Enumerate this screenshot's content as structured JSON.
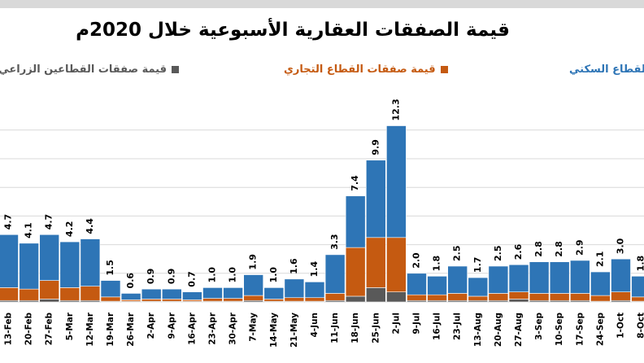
{
  "chart_data": {
    "type": "bar",
    "stacked": true,
    "title": "قيمة الصفقات العقارية الأسبوعية خلال 2020م",
    "legend_position": "top",
    "grid": true,
    "categories": [
      "13-Feb",
      "20-Feb",
      "27-Feb",
      "5-Mar",
      "12-Mar",
      "19-Mar",
      "26-Mar",
      "2-Apr",
      "9-Apr",
      "16-Apr",
      "23-Apr",
      "30-Apr",
      "7-May",
      "14-May",
      "21-May",
      "4-Jun",
      "11-Jun",
      "18-Jun",
      "25-Jun",
      "2-Jul",
      "9-Jul",
      "16-Jul",
      "23-Jul",
      "13-Aug",
      "20-Aug",
      "27-Aug",
      "3-Sep",
      "10-Sep",
      "17-Sep",
      "24-Sep",
      "1-Oct",
      "8-Oct"
    ],
    "totals": [
      4.7,
      4.1,
      4.7,
      4.2,
      4.4,
      1.5,
      0.6,
      0.9,
      0.9,
      0.7,
      1.0,
      1.0,
      1.9,
      1.0,
      1.6,
      1.4,
      3.3,
      7.4,
      9.9,
      12.3,
      2.0,
      1.8,
      2.5,
      1.7,
      2.5,
      2.6,
      2.8,
      2.8,
      2.9,
      2.1,
      3.0,
      1.8
    ],
    "series": [
      {
        "name": "قيمة صفقات القطاعين الزراعي وا",
        "color": "#595959",
        "values": [
          0.1,
          0.1,
          0.2,
          0.1,
          0.1,
          0.05,
          0.05,
          0.05,
          0.05,
          0.05,
          0.05,
          0.05,
          0.1,
          0.05,
          0.05,
          0.05,
          0.1,
          0.4,
          1.0,
          0.7,
          0.1,
          0.1,
          0.1,
          0.1,
          0.1,
          0.2,
          0.1,
          0.1,
          0.1,
          0.05,
          0.1,
          0.05
        ]
      },
      {
        "name": "قيمة صفقات القطاع التجاري",
        "color": "#c55a11",
        "values": [
          0.9,
          0.8,
          1.3,
          0.9,
          1.0,
          0.3,
          0.1,
          0.15,
          0.15,
          0.1,
          0.2,
          0.2,
          0.35,
          0.15,
          0.25,
          0.25,
          0.5,
          3.4,
          3.5,
          3.8,
          0.4,
          0.4,
          0.5,
          0.3,
          0.5,
          0.5,
          0.5,
          0.5,
          0.5,
          0.4,
          0.6,
          0.3
        ]
      },
      {
        "name": "قيمة صفقات القطاع السكني",
        "color": "#2e75b6",
        "values": [
          3.7,
          3.2,
          3.2,
          3.2,
          3.3,
          1.15,
          0.45,
          0.7,
          0.7,
          0.55,
          0.75,
          0.75,
          1.45,
          0.8,
          1.3,
          1.1,
          2.7,
          3.6,
          5.4,
          7.8,
          1.5,
          1.3,
          1.9,
          1.3,
          1.9,
          1.9,
          2.2,
          2.2,
          2.3,
          1.65,
          2.3,
          1.45
        ]
      }
    ],
    "ylim": [
      0,
      14
    ]
  },
  "legend": {
    "residential": {
      "label": "قيمة صفقات القطاع السكني",
      "color": "#2e75b6"
    },
    "commercial": {
      "label": "قيمة صفقات القطاع التجاري",
      "color": "#c55a11"
    },
    "agricultural": {
      "label": "قيمة صفقات القطاعين الزراعي وا",
      "color": "#595959"
    }
  }
}
